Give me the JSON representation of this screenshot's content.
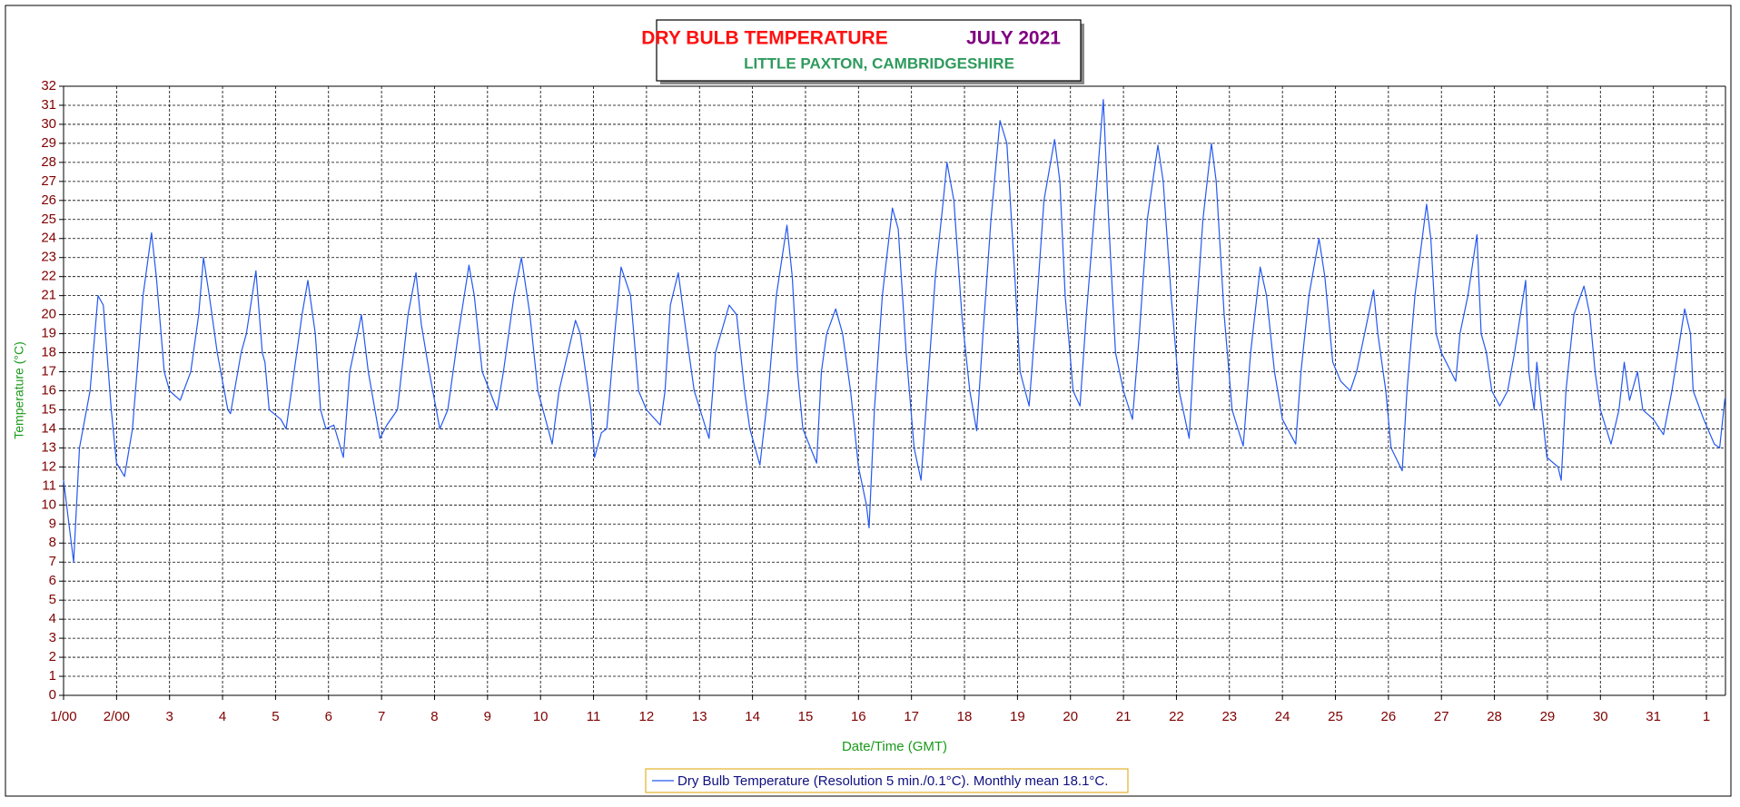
{
  "chart_data": {
    "type": "line",
    "title": "DRY BULB TEMPERATURE",
    "period": "JULY 2021",
    "subtitle": "LITTLE PAXTON, CAMBRIDGESHIRE",
    "x_label": "Date/Time (GMT)",
    "y_label": "Temperature (°C)",
    "xlim": [
      0,
      31.36
    ],
    "ylim": [
      0,
      32
    ],
    "grid": true,
    "legend": "bottom",
    "xticks": [
      {
        "value": 0,
        "label": "1/00"
      },
      {
        "value": 1,
        "label": "2/00"
      },
      {
        "value": 2,
        "label": "3"
      },
      {
        "value": 3,
        "label": "4"
      },
      {
        "value": 4,
        "label": "5"
      },
      {
        "value": 5,
        "label": "6"
      },
      {
        "value": 6,
        "label": "7"
      },
      {
        "value": 7,
        "label": "8"
      },
      {
        "value": 8,
        "label": "9"
      },
      {
        "value": 9,
        "label": "10"
      },
      {
        "value": 10,
        "label": "11"
      },
      {
        "value": 11,
        "label": "12"
      },
      {
        "value": 12,
        "label": "13"
      },
      {
        "value": 13,
        "label": "14"
      },
      {
        "value": 14,
        "label": "15"
      },
      {
        "value": 15,
        "label": "16"
      },
      {
        "value": 16,
        "label": "17"
      },
      {
        "value": 17,
        "label": "18"
      },
      {
        "value": 18,
        "label": "19"
      },
      {
        "value": 19,
        "label": "20"
      },
      {
        "value": 20,
        "label": "21"
      },
      {
        "value": 21,
        "label": "22"
      },
      {
        "value": 22,
        "label": "23"
      },
      {
        "value": 23,
        "label": "24"
      },
      {
        "value": 24,
        "label": "25"
      },
      {
        "value": 25,
        "label": "26"
      },
      {
        "value": 26,
        "label": "27"
      },
      {
        "value": 27,
        "label": "28"
      },
      {
        "value": 28,
        "label": "29"
      },
      {
        "value": 29,
        "label": "30"
      },
      {
        "value": 30,
        "label": "31"
      },
      {
        "value": 31,
        "label": "1"
      }
    ],
    "yticks": [
      0,
      1,
      2,
      3,
      4,
      5,
      6,
      7,
      8,
      9,
      10,
      11,
      12,
      13,
      14,
      15,
      16,
      17,
      18,
      19,
      20,
      21,
      22,
      23,
      24,
      25,
      26,
      27,
      28,
      29,
      30,
      31,
      32
    ],
    "x": [
      0,
      0.19,
      0.3,
      0.5,
      0.65,
      0.75,
      0.9,
      1.0,
      1.15,
      1.3,
      1.5,
      1.66,
      1.75,
      1.9,
      2.0,
      2.2,
      2.4,
      2.55,
      2.64,
      2.75,
      2.9,
      3.1,
      3.15,
      3.35,
      3.45,
      3.63,
      3.75,
      3.8,
      3.88,
      4.1,
      4.2,
      4.35,
      4.5,
      4.61,
      4.75,
      4.85,
      4.95,
      5.1,
      5.28,
      5.4,
      5.55,
      5.62,
      5.75,
      5.97,
      6.1,
      6.3,
      6.5,
      6.65,
      6.75,
      6.9,
      7.1,
      7.25,
      7.45,
      7.65,
      7.75,
      7.9,
      8.18,
      8.3,
      8.5,
      8.64,
      8.8,
      8.95,
      9.22,
      9.35,
      9.66,
      9.75,
      9.95,
      10.02,
      10.15,
      10.25,
      10.4,
      10.52,
      10.7,
      10.85,
      11.0,
      11.26,
      11.35,
      11.45,
      11.6,
      11.75,
      11.9,
      12.18,
      12.25,
      12.3,
      12.56,
      12.7,
      12.85,
      12.95,
      13.14,
      13.3,
      13.45,
      13.65,
      13.75,
      13.85,
      13.95,
      14.21,
      14.3,
      14.4,
      14.57,
      14.7,
      14.85,
      15.0,
      15.15,
      15.2,
      15.3,
      15.45,
      15.64,
      15.75,
      15.9,
      16.05,
      16.18,
      16.3,
      16.45,
      16.6,
      16.67,
      16.8,
      16.95,
      17.1,
      17.23,
      17.35,
      17.5,
      17.67,
      17.8,
      17.95,
      18.05,
      18.22,
      18.35,
      18.5,
      18.7,
      18.8,
      18.9,
      19.05,
      19.18,
      19.3,
      19.5,
      19.62,
      19.72,
      19.85,
      20.0,
      20.17,
      20.3,
      20.45,
      20.65,
      20.75,
      20.9,
      21.05,
      21.24,
      21.35,
      21.5,
      21.66,
      21.75,
      21.9,
      22.05,
      22.26,
      22.4,
      22.58,
      22.7,
      22.85,
      23.0,
      23.25,
      23.35,
      23.5,
      23.69,
      23.8,
      23.95,
      24.1,
      24.28,
      24.4,
      24.55,
      24.72,
      24.8,
      24.95,
      25.05,
      25.26,
      25.35,
      25.5,
      25.72,
      25.8,
      25.9,
      26.0,
      26.27,
      26.35,
      26.5,
      26.67,
      26.75,
      26.85,
      26.95,
      27.1,
      27.25,
      27.38,
      27.59,
      27.65,
      27.75,
      27.8,
      27.99,
      28.2,
      28.26,
      28.35,
      28.5,
      28.69,
      28.8,
      28.9,
      29.0,
      29.2,
      29.35,
      29.45,
      29.55,
      29.7,
      29.8,
      30.0,
      30.19,
      30.35,
      30.59,
      30.7,
      30.75,
      30.95,
      31.15,
      31.25,
      31.35
    ],
    "series": [
      {
        "name": "Dry Bulb Temperature (Resolution 5 min./0.1°C). Monthly mean 18.1°C.",
        "color": "#2458f0",
        "values": [
          11.3,
          7,
          13,
          16,
          21,
          20.5,
          15,
          12.2,
          11.5,
          14,
          21,
          24.3,
          22,
          17,
          16,
          15.5,
          17,
          20,
          23,
          21,
          18,
          15,
          14.8,
          18,
          19,
          22.3,
          18,
          17.5,
          15,
          14.5,
          14,
          17,
          20,
          21.8,
          19,
          15,
          14,
          14.2,
          12.5,
          17,
          19,
          20,
          17,
          13.5,
          14.2,
          15,
          20,
          22.2,
          19.5,
          17,
          14,
          15,
          19,
          22.6,
          21,
          17,
          15,
          17,
          21,
          23,
          20,
          16,
          13.2,
          16,
          19.7,
          19,
          15,
          12.5,
          13.8,
          14,
          19,
          22.5,
          21,
          16,
          15,
          14.2,
          16,
          20.5,
          22.2,
          19,
          16,
          13.5,
          16,
          18,
          20.5,
          20,
          16,
          14,
          12.1,
          16,
          21,
          24.7,
          22,
          17,
          14,
          12.2,
          17,
          19,
          20.3,
          19,
          16,
          12,
          10,
          8.8,
          15,
          21,
          25.6,
          24.5,
          18,
          13,
          11.3,
          16,
          22,
          26,
          28,
          26,
          20,
          16,
          13.9,
          19,
          25,
          30.2,
          29,
          22,
          17,
          15.2,
          20,
          26,
          29.2,
          27,
          21,
          16,
          15.2,
          20,
          27,
          31.3,
          25,
          18,
          16,
          14.5,
          19,
          25,
          28.9,
          27,
          21,
          16,
          13.5,
          19,
          25,
          29,
          27,
          20,
          15,
          13.1,
          18,
          22.5,
          21,
          17,
          14.5,
          13.2,
          17,
          21,
          24,
          22,
          17.5,
          16.5,
          16,
          17,
          19,
          21.3,
          19,
          16,
          13,
          11.8,
          16,
          21,
          25.8,
          24,
          19,
          18,
          16.5,
          19,
          21,
          24.2,
          19,
          18,
          16,
          15.2,
          16,
          18,
          21.8,
          17,
          15,
          17.5,
          12.5,
          12,
          11.3,
          16,
          20,
          21.5,
          20,
          17,
          15,
          13.2,
          15,
          17.5,
          15.5,
          17,
          15,
          14.5,
          13.7,
          16,
          20.3,
          19,
          16,
          14.5,
          13.2,
          13,
          15.6
        ]
      }
    ]
  }
}
